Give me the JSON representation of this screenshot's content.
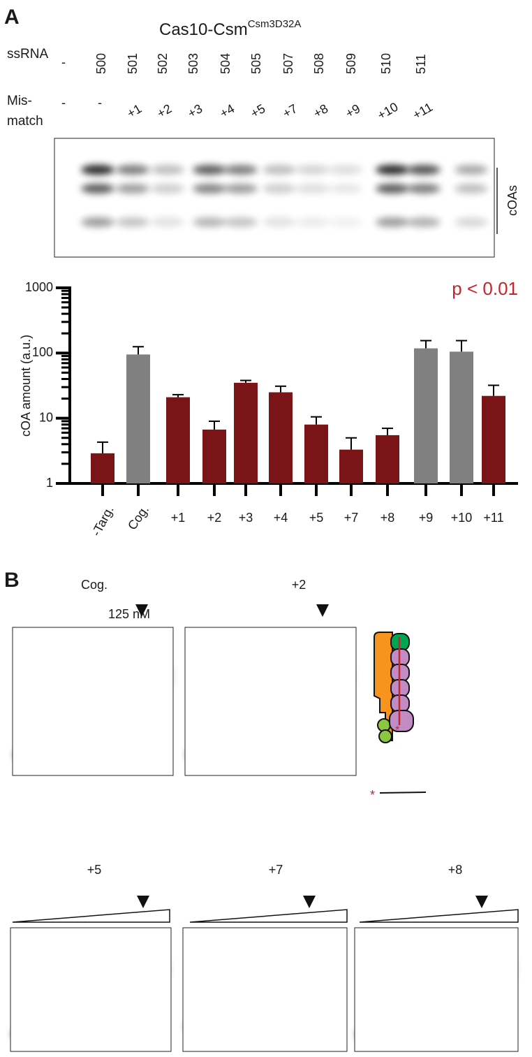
{
  "panel_a": {
    "label": "A",
    "title": "Cas10-Csm",
    "title_sup": "Csm3D32A",
    "ssrna_label": "ssRNA",
    "ssrna": [
      "-",
      "500",
      "501",
      "502",
      "503",
      "504",
      "505",
      "507",
      "508",
      "509",
      "510",
      "511"
    ],
    "mismatch_label": [
      "Mis-",
      "match"
    ],
    "mismatch": [
      "-",
      "-",
      "+1",
      "+2",
      "+3",
      "+4",
      "+5",
      "+7",
      "+8",
      "+9",
      "+10",
      "+11"
    ],
    "gel_label": "cOAs"
  },
  "chart_data": {
    "type": "bar",
    "ylabel": "cOA amount (a.u.)",
    "annotation": "p < 0.01",
    "annotation_color": "#c0272d",
    "categories": [
      "-Targ.",
      "Cog.",
      "+1",
      "+2",
      "+3",
      "+4",
      "+5",
      "+7",
      "+8",
      "+9",
      "+10",
      "+11"
    ],
    "values": [
      2.9,
      95,
      21,
      6.7,
      35,
      25,
      8,
      3.3,
      5.5,
      118,
      105,
      22
    ],
    "errors": [
      1.4,
      30,
      2,
      2.3,
      3,
      6,
      2.5,
      1.7,
      1.5,
      37,
      50,
      10
    ],
    "colors": [
      "#7b1416",
      "#808080",
      "#7b1416",
      "#7b1416",
      "#7b1416",
      "#7b1416",
      "#7b1416",
      "#7b1416",
      "#7b1416",
      "#808080",
      "#808080",
      "#7b1416"
    ],
    "log_scale": true,
    "ylim": [
      1,
      1000
    ],
    "yticks": [
      1,
      10,
      100,
      1000
    ],
    "yminorticks": [
      2,
      3,
      4,
      5,
      6,
      7,
      8,
      9,
      20,
      30,
      40,
      50,
      60,
      70,
      80,
      90,
      200,
      300,
      400,
      500,
      600,
      700,
      800,
      900
    ]
  },
  "panel_b": {
    "label": "B",
    "gels": [
      {
        "title": "Cog.",
        "concentration": "125 nM"
      },
      {
        "title": "+2"
      },
      {
        "title": "+5"
      },
      {
        "title": "+7"
      },
      {
        "title": "+8"
      }
    ],
    "complex_star": "*",
    "probe_star": "*"
  }
}
